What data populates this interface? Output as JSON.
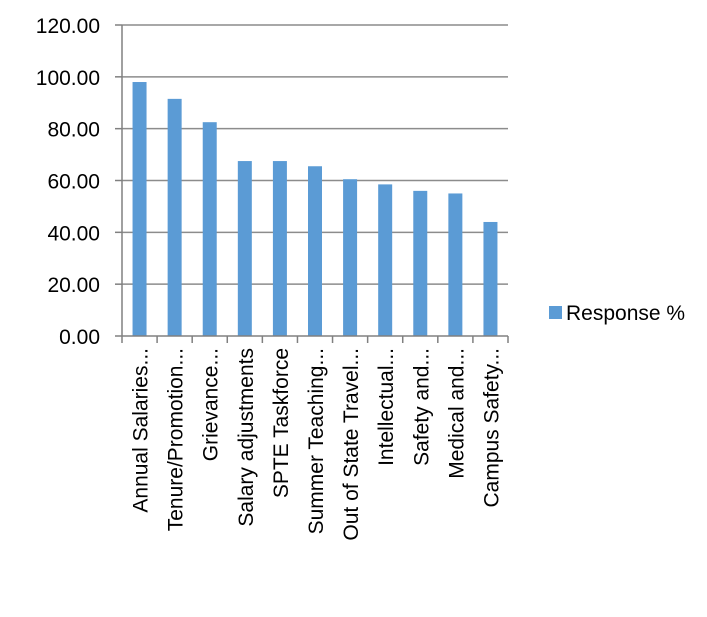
{
  "chart_data": {
    "type": "bar",
    "categories": [
      "Annual Salaries...",
      "Tenure/Promotion...",
      "Grievance...",
      "Salary adjustments",
      "SPTE Taskforce",
      "Summer Teaching...",
      "Out of State Travel...",
      "Intellectual...",
      "Safety and...",
      "Medical and...",
      "Campus Safety..."
    ],
    "series": [
      {
        "name": "Response %",
        "values": [
          98.0,
          91.5,
          82.5,
          67.5,
          67.5,
          65.5,
          60.5,
          58.5,
          56.0,
          55.0,
          44.0
        ]
      }
    ],
    "yticks": [
      "0.00",
      "20.00",
      "40.00",
      "60.00",
      "80.00",
      "100.00",
      "120.00"
    ],
    "ylim": [
      0,
      120
    ],
    "grid": true,
    "legend_position": "right",
    "colors": {
      "bar": "#5b9bd5",
      "grid": "#8c8c8c",
      "axis": "#808080"
    }
  }
}
